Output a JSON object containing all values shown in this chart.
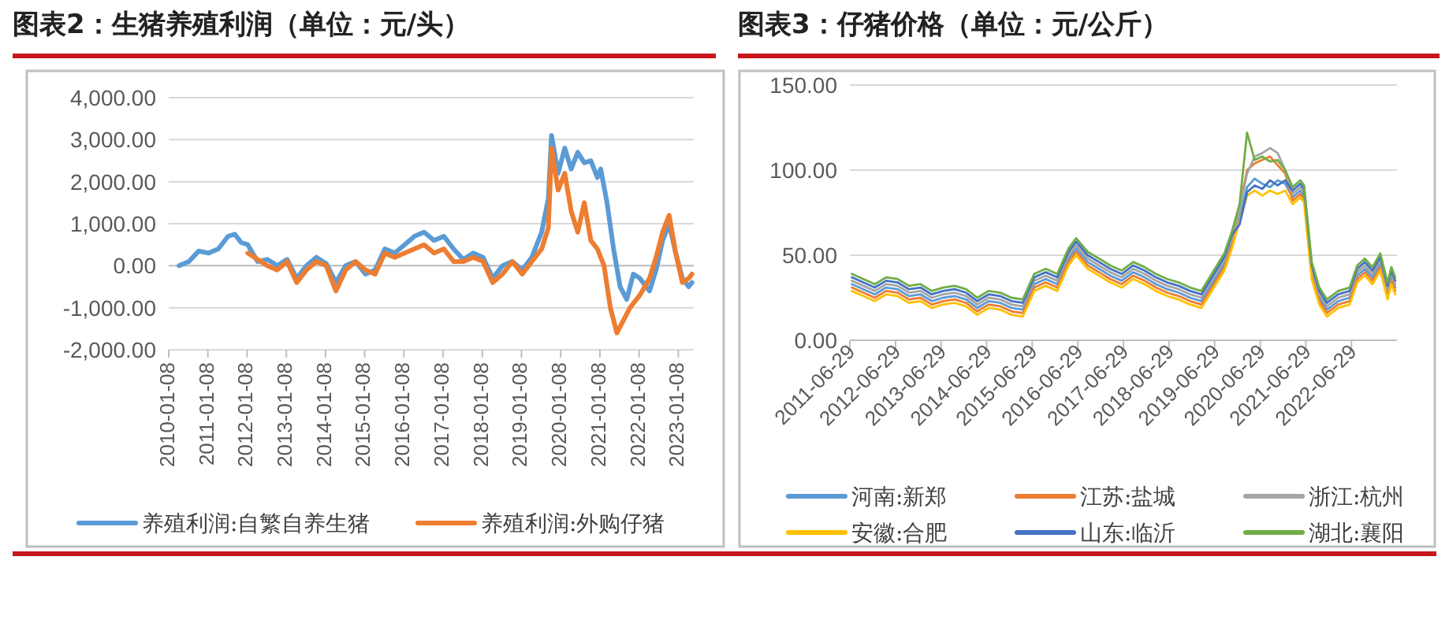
{
  "chart_data": [
    {
      "type": "line",
      "title": "图表2：生猪养殖利润（单位：元/头）",
      "grid": "y",
      "legend": "bottom",
      "xlim": [
        "2010-01-08",
        "2023-06-01"
      ],
      "xticks": [
        "2010-01-08",
        "2011-01-08",
        "2012-01-08",
        "2013-01-08",
        "2014-01-08",
        "2015-01-08",
        "2016-01-08",
        "2017-01-08",
        "2018-01-08",
        "2019-01-08",
        "2020-01-08",
        "2021-01-08",
        "2022-01-08",
        "2023-01-08"
      ],
      "ylim": [
        -2000,
        4000
      ],
      "yticks": [
        {
          "value": -2000,
          "label": "-2,000.00"
        },
        {
          "value": -1000,
          "label": "-1,000.00"
        },
        {
          "value": 0,
          "label": "0.00"
        },
        {
          "value": 1000,
          "label": "1,000.00"
        },
        {
          "value": 2000,
          "label": "2,000.00"
        },
        {
          "value": 3000,
          "label": "3,000.00"
        },
        {
          "value": 4000,
          "label": "4,000.00"
        }
      ],
      "series": [
        {
          "name": "养殖利润:自繁自养生猪",
          "color": "#5b9bd5",
          "x": [
            "2010-04",
            "2010-07",
            "2010-10",
            "2011-01",
            "2011-04",
            "2011-07",
            "2011-09",
            "2011-11",
            "2012-01",
            "2012-04",
            "2012-07",
            "2012-10",
            "2013-01",
            "2013-04",
            "2013-07",
            "2013-10",
            "2014-01",
            "2014-04",
            "2014-07",
            "2014-10",
            "2015-01",
            "2015-04",
            "2015-07",
            "2015-10",
            "2016-01",
            "2016-04",
            "2016-07",
            "2016-10",
            "2017-01",
            "2017-04",
            "2017-07",
            "2017-10",
            "2018-01",
            "2018-04",
            "2018-07",
            "2018-10",
            "2019-01",
            "2019-04",
            "2019-07",
            "2019-09",
            "2019-10",
            "2019-12",
            "2020-02",
            "2020-04",
            "2020-06",
            "2020-08",
            "2020-10",
            "2020-12",
            "2021-01",
            "2021-03",
            "2021-05",
            "2021-07",
            "2021-09",
            "2021-11",
            "2022-01",
            "2022-04",
            "2022-06",
            "2022-08",
            "2022-10",
            "2022-12",
            "2023-02",
            "2023-04",
            "2023-05"
          ],
          "values": [
            0,
            100,
            350,
            300,
            400,
            700,
            750,
            550,
            500,
            100,
            150,
            0,
            150,
            -300,
            0,
            200,
            50,
            -400,
            0,
            100,
            -200,
            -100,
            400,
            300,
            500,
            700,
            800,
            600,
            700,
            400,
            150,
            300,
            200,
            -300,
            0,
            100,
            -100,
            200,
            800,
            1600,
            3100,
            2200,
            2800,
            2300,
            2700,
            2450,
            2500,
            2100,
            2300,
            1500,
            400,
            -500,
            -800,
            -200,
            -300,
            -600,
            -100,
            600,
            1000,
            300,
            -300,
            -500,
            -400
          ]
        },
        {
          "name": "养殖利润:外购仔猪",
          "color": "#ed7d31",
          "x": [
            "2012-01",
            "2012-04",
            "2012-07",
            "2012-10",
            "2013-01",
            "2013-04",
            "2013-07",
            "2013-10",
            "2014-01",
            "2014-04",
            "2014-07",
            "2014-10",
            "2015-01",
            "2015-04",
            "2015-07",
            "2015-10",
            "2016-01",
            "2016-04",
            "2016-07",
            "2016-10",
            "2017-01",
            "2017-04",
            "2017-07",
            "2017-10",
            "2018-01",
            "2018-04",
            "2018-07",
            "2018-10",
            "2019-01",
            "2019-04",
            "2019-07",
            "2019-09",
            "2019-10",
            "2019-12",
            "2020-02",
            "2020-04",
            "2020-06",
            "2020-08",
            "2020-10",
            "2020-12",
            "2021-02",
            "2021-04",
            "2021-06",
            "2021-08",
            "2021-10",
            "2022-01",
            "2022-04",
            "2022-06",
            "2022-08",
            "2022-10",
            "2022-12",
            "2023-02",
            "2023-04",
            "2023-05"
          ],
          "values": [
            300,
            150,
            0,
            -100,
            100,
            -400,
            -100,
            100,
            0,
            -600,
            -100,
            100,
            -100,
            -200,
            300,
            200,
            300,
            400,
            500,
            300,
            400,
            100,
            100,
            200,
            100,
            -400,
            -200,
            100,
            -200,
            100,
            400,
            900,
            2800,
            1800,
            2200,
            1300,
            800,
            1500,
            600,
            400,
            0,
            -1000,
            -1600,
            -1300,
            -1000,
            -700,
            -300,
            200,
            800,
            1200,
            300,
            -400,
            -300,
            -200
          ]
        }
      ]
    },
    {
      "type": "line",
      "title": "图表3：仔猪价格（单位：元/公斤）",
      "grid": "y",
      "legend": "bottom",
      "xlim": [
        "2011-06-29",
        "2023-06-29"
      ],
      "xticks": [
        "2011-06-29",
        "2012-06-29",
        "2013-06-29",
        "2014-06-29",
        "2015-06-29",
        "2016-06-29",
        "2017-06-29",
        "2018-06-29",
        "2019-06-29",
        "2020-06-29",
        "2021-06-29",
        "2022-06-29"
      ],
      "ylim": [
        0,
        150
      ],
      "yticks": [
        {
          "value": 0,
          "label": "0.00"
        },
        {
          "value": 50,
          "label": "50.00"
        },
        {
          "value": 100,
          "label": "100.00"
        },
        {
          "value": 150,
          "label": "150.00"
        }
      ],
      "x": [
        "2011-07",
        "2011-10",
        "2012-01",
        "2012-04",
        "2012-07",
        "2012-10",
        "2013-01",
        "2013-04",
        "2013-07",
        "2013-10",
        "2014-01",
        "2014-04",
        "2014-07",
        "2014-10",
        "2015-01",
        "2015-04",
        "2015-07",
        "2015-10",
        "2016-01",
        "2016-04",
        "2016-06",
        "2016-09",
        "2016-12",
        "2017-03",
        "2017-06",
        "2017-09",
        "2017-12",
        "2018-03",
        "2018-06",
        "2018-09",
        "2018-12",
        "2019-03",
        "2019-06",
        "2019-09",
        "2019-11",
        "2020-01",
        "2020-03",
        "2020-05",
        "2020-07",
        "2020-09",
        "2020-11",
        "2021-01",
        "2021-03",
        "2021-05",
        "2021-06",
        "2021-08",
        "2021-10",
        "2021-12",
        "2022-03",
        "2022-06",
        "2022-08",
        "2022-10",
        "2022-12",
        "2023-02",
        "2023-04",
        "2023-05",
        "2023-06"
      ],
      "series": [
        {
          "name": "河南:新郑",
          "color": "#5b9bd5",
          "values": [
            33,
            30,
            27,
            31,
            30,
            26,
            27,
            23,
            25,
            26,
            24,
            19,
            23,
            22,
            19,
            18,
            33,
            36,
            33,
            48,
            54,
            46,
            42,
            38,
            35,
            40,
            37,
            33,
            30,
            28,
            25,
            23,
            34,
            45,
            58,
            72,
            90,
            95,
            92,
            90,
            94,
            92,
            84,
            88,
            85,
            40,
            25,
            18,
            23,
            25,
            38,
            42,
            37,
            45,
            28,
            37,
            31
          ]
        },
        {
          "name": "江苏:盐城",
          "color": "#ed7d31",
          "values": [
            31,
            28,
            25,
            29,
            28,
            24,
            25,
            21,
            23,
            24,
            22,
            17,
            21,
            20,
            17,
            16,
            31,
            34,
            31,
            46,
            52,
            44,
            40,
            36,
            33,
            38,
            35,
            31,
            28,
            26,
            23,
            21,
            32,
            43,
            56,
            78,
            100,
            104,
            106,
            108,
            103,
            98,
            82,
            86,
            83,
            38,
            23,
            16,
            21,
            23,
            36,
            40,
            35,
            43,
            26,
            35,
            29
          ]
        },
        {
          "name": "浙江:杭州",
          "color": "#a5a5a5",
          "values": [
            35,
            32,
            29,
            33,
            32,
            28,
            29,
            25,
            27,
            28,
            26,
            21,
            25,
            24,
            21,
            20,
            35,
            38,
            35,
            50,
            56,
            48,
            44,
            40,
            37,
            42,
            39,
            35,
            32,
            30,
            27,
            25,
            36,
            47,
            60,
            76,
            98,
            108,
            110,
            113,
            110,
            100,
            86,
            90,
            87,
            42,
            27,
            20,
            25,
            27,
            40,
            44,
            39,
            47,
            30,
            39,
            33
          ]
        },
        {
          "name": "安徽:合肥",
          "color": "#ffc000",
          "values": [
            29,
            26,
            23,
            27,
            26,
            22,
            23,
            19,
            21,
            22,
            20,
            15,
            19,
            18,
            15,
            14,
            29,
            32,
            29,
            44,
            50,
            42,
            38,
            34,
            31,
            36,
            33,
            29,
            26,
            24,
            21,
            19,
            30,
            41,
            54,
            70,
            85,
            88,
            85,
            88,
            86,
            88,
            80,
            84,
            81,
            36,
            21,
            14,
            19,
            21,
            34,
            38,
            33,
            41,
            24,
            33,
            27
          ]
        },
        {
          "name": "山东:临沂",
          "color": "#4472c4",
          "values": [
            37,
            34,
            31,
            35,
            34,
            30,
            31,
            27,
            29,
            30,
            28,
            23,
            27,
            26,
            23,
            22,
            37,
            40,
            37,
            52,
            58,
            50,
            46,
            42,
            39,
            44,
            41,
            37,
            34,
            32,
            29,
            27,
            38,
            49,
            62,
            68,
            87,
            91,
            89,
            94,
            91,
            94,
            88,
            92,
            89,
            44,
            29,
            22,
            27,
            29,
            42,
            46,
            41,
            49,
            32,
            41,
            35
          ]
        },
        {
          "name": "湖北:襄阳",
          "color": "#70ad47",
          "values": [
            39,
            36,
            33,
            37,
            36,
            32,
            33,
            29,
            31,
            32,
            30,
            25,
            29,
            28,
            25,
            24,
            39,
            42,
            39,
            54,
            60,
            52,
            48,
            44,
            41,
            46,
            43,
            39,
            36,
            34,
            31,
            29,
            40,
            51,
            64,
            80,
            122,
            106,
            108,
            105,
            106,
            100,
            90,
            94,
            91,
            46,
            31,
            24,
            29,
            31,
            44,
            48,
            43,
            51,
            34,
            43,
            37
          ]
        }
      ]
    }
  ]
}
